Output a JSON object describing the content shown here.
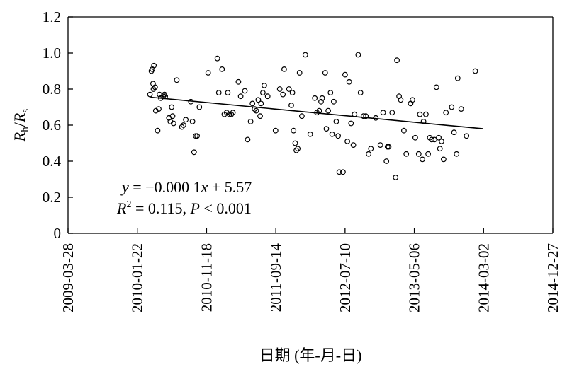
{
  "chart_data": {
    "type": "scatter",
    "xlabel": "日期 (年-月-日)",
    "ylabel": {
      "main": "R",
      "sub1": "h",
      "slash": "/",
      "main2": "R",
      "sub2": "s"
    },
    "xlim": [
      "2009-03-28",
      "2014-12-27"
    ],
    "ylim": [
      0,
      1.2
    ],
    "x_ticks": [
      "2009-03-28",
      "2010-01-22",
      "2010-11-18",
      "2011-09-14",
      "2012-07-10",
      "2013-05-06",
      "2014-03-02",
      "2014-12-27"
    ],
    "y_ticks": [
      "0",
      "0.2",
      "0.4",
      "0.6",
      "0.8",
      "1.0",
      "1.2"
    ],
    "regression": {
      "x_start": "2010-03-20",
      "y_start": 0.755,
      "x_end": "2014-02-28",
      "y_end": 0.58,
      "equation": {
        "y": "y",
        "eq": " = −0.000 1",
        "x": "x",
        "rest": " + 5.57"
      },
      "stats": {
        "r": "R",
        "sup": "2",
        "mid": " = 0.115, ",
        "p": "P",
        "tail": " < 0.001"
      }
    },
    "grid": false,
    "points": [
      [
        "2010-03-18",
        0.77
      ],
      [
        "2010-03-24",
        0.9
      ],
      [
        "2010-03-28",
        0.91
      ],
      [
        "2010-03-31",
        0.83
      ],
      [
        "2010-04-04",
        0.93
      ],
      [
        "2010-04-02",
        0.8
      ],
      [
        "2010-04-09",
        0.81
      ],
      [
        "2010-04-12",
        0.68
      ],
      [
        "2010-04-20",
        0.57
      ],
      [
        "2010-04-25",
        0.69
      ],
      [
        "2010-04-28",
        0.77
      ],
      [
        "2010-05-04",
        0.75
      ],
      [
        "2010-05-14",
        0.76
      ],
      [
        "2010-05-20",
        0.77
      ],
      [
        "2010-05-23",
        0.76
      ],
      [
        "2010-06-08",
        0.64
      ],
      [
        "2010-06-14",
        0.62
      ],
      [
        "2010-06-20",
        0.7
      ],
      [
        "2010-06-24",
        0.65
      ],
      [
        "2010-06-28",
        0.61
      ],
      [
        "2010-07-12",
        0.85
      ],
      [
        "2010-08-03",
        0.59
      ],
      [
        "2010-08-10",
        0.6
      ],
      [
        "2010-08-20",
        0.63
      ],
      [
        "2010-09-11",
        0.73
      ],
      [
        "2010-09-18",
        0.62
      ],
      [
        "2010-09-25",
        0.45
      ],
      [
        "2010-10-02",
        0.54
      ],
      [
        "2010-10-08",
        0.54
      ],
      [
        "2010-10-18",
        0.7
      ],
      [
        "2010-11-25",
        0.89
      ],
      [
        "2011-01-04",
        0.97
      ],
      [
        "2011-01-10",
        0.78
      ],
      [
        "2011-01-24",
        0.91
      ],
      [
        "2011-02-03",
        0.66
      ],
      [
        "2011-02-13",
        0.67
      ],
      [
        "2011-02-18",
        0.78
      ],
      [
        "2011-02-25",
        0.66
      ],
      [
        "2011-03-05",
        0.66
      ],
      [
        "2011-03-12",
        0.67
      ],
      [
        "2011-04-05",
        0.84
      ],
      [
        "2011-04-15",
        0.76
      ],
      [
        "2011-05-03",
        0.79
      ],
      [
        "2011-05-15",
        0.52
      ],
      [
        "2011-05-28",
        0.62
      ],
      [
        "2011-06-05",
        0.72
      ],
      [
        "2011-06-14",
        0.69
      ],
      [
        "2011-06-21",
        0.68
      ],
      [
        "2011-06-30",
        0.74
      ],
      [
        "2011-07-08",
        0.65
      ],
      [
        "2011-07-12",
        0.72
      ],
      [
        "2011-07-20",
        0.78
      ],
      [
        "2011-07-26",
        0.82
      ],
      [
        "2011-08-10",
        0.76
      ],
      [
        "2011-09-13",
        0.57
      ],
      [
        "2011-10-01",
        0.8
      ],
      [
        "2011-10-15",
        0.77
      ],
      [
        "2011-10-20",
        0.91
      ],
      [
        "2011-11-10",
        0.8
      ],
      [
        "2011-11-20",
        0.71
      ],
      [
        "2011-11-25",
        0.78
      ],
      [
        "2011-11-30",
        0.57
      ],
      [
        "2011-12-07",
        0.5
      ],
      [
        "2011-12-12",
        0.46
      ],
      [
        "2011-12-18",
        0.47
      ],
      [
        "2011-12-26",
        0.89
      ],
      [
        "2012-01-05",
        0.65
      ],
      [
        "2012-01-20",
        0.99
      ],
      [
        "2012-02-10",
        0.55
      ],
      [
        "2012-03-01",
        0.75
      ],
      [
        "2012-03-10",
        0.67
      ],
      [
        "2012-03-20",
        0.68
      ],
      [
        "2012-03-28",
        0.73
      ],
      [
        "2012-04-02",
        0.75
      ],
      [
        "2012-04-15",
        0.89
      ],
      [
        "2012-04-20",
        0.58
      ],
      [
        "2012-04-28",
        0.68
      ],
      [
        "2012-05-08",
        0.78
      ],
      [
        "2012-05-15",
        0.55
      ],
      [
        "2012-05-22",
        0.73
      ],
      [
        "2012-06-02",
        0.62
      ],
      [
        "2012-06-10",
        0.54
      ],
      [
        "2012-06-15",
        0.34
      ],
      [
        "2012-07-01",
        0.34
      ],
      [
        "2012-07-10",
        0.88
      ],
      [
        "2012-07-20",
        0.51
      ],
      [
        "2012-07-28",
        0.84
      ],
      [
        "2012-08-05",
        0.61
      ],
      [
        "2012-08-15",
        0.49
      ],
      [
        "2012-08-20",
        0.66
      ],
      [
        "2012-09-05",
        0.99
      ],
      [
        "2012-09-15",
        0.78
      ],
      [
        "2012-09-28",
        0.65
      ],
      [
        "2012-10-08",
        0.65
      ],
      [
        "2012-10-20",
        0.44
      ],
      [
        "2012-10-30",
        0.47
      ],
      [
        "2012-11-20",
        0.64
      ],
      [
        "2012-12-10",
        0.49
      ],
      [
        "2012-12-22",
        0.67
      ],
      [
        "2013-01-05",
        0.4
      ],
      [
        "2013-01-10",
        0.48
      ],
      [
        "2013-01-15",
        0.48
      ],
      [
        "2013-01-30",
        0.67
      ],
      [
        "2013-02-14",
        0.31
      ],
      [
        "2013-02-20",
        0.96
      ],
      [
        "2013-03-01",
        0.76
      ],
      [
        "2013-03-08",
        0.74
      ],
      [
        "2013-03-22",
        0.57
      ],
      [
        "2013-04-01",
        0.44
      ],
      [
        "2013-04-20",
        0.72
      ],
      [
        "2013-04-28",
        0.74
      ],
      [
        "2013-05-10",
        0.53
      ],
      [
        "2013-05-25",
        0.44
      ],
      [
        "2013-05-30",
        0.66
      ],
      [
        "2013-06-10",
        0.41
      ],
      [
        "2013-06-15",
        0.62
      ],
      [
        "2013-06-25",
        0.66
      ],
      [
        "2013-07-05",
        0.44
      ],
      [
        "2013-07-12",
        0.53
      ],
      [
        "2013-07-20",
        0.52
      ],
      [
        "2013-08-01",
        0.52
      ],
      [
        "2013-08-10",
        0.81
      ],
      [
        "2013-08-20",
        0.53
      ],
      [
        "2013-08-25",
        0.47
      ],
      [
        "2013-09-01",
        0.51
      ],
      [
        "2013-09-10",
        0.41
      ],
      [
        "2013-09-20",
        0.67
      ],
      [
        "2013-10-15",
        0.7
      ],
      [
        "2013-10-25",
        0.56
      ],
      [
        "2013-11-05",
        0.44
      ],
      [
        "2013-11-10",
        0.86
      ],
      [
        "2013-11-25",
        0.69
      ],
      [
        "2013-12-18",
        0.54
      ],
      [
        "2014-01-25",
        0.9
      ]
    ]
  }
}
